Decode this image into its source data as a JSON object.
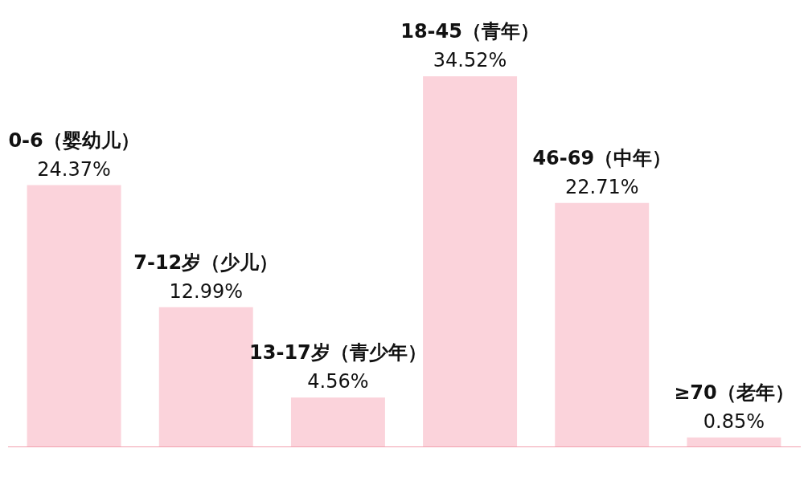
{
  "chart_data": {
    "type": "bar",
    "categories": [
      "0-6（婴幼儿）",
      "7-12岁（少儿）",
      "13-17岁（青少年）",
      "18-45（青年）",
      "46-69（中年）",
      "≥70（老年）"
    ],
    "values": [
      24.37,
      12.99,
      4.56,
      34.52,
      22.71,
      0.85
    ],
    "value_labels": [
      "24.37%",
      "12.99%",
      "4.56%",
      "34.52%",
      "22.71%",
      "0.85%"
    ],
    "color": "#fbd3db"
  }
}
